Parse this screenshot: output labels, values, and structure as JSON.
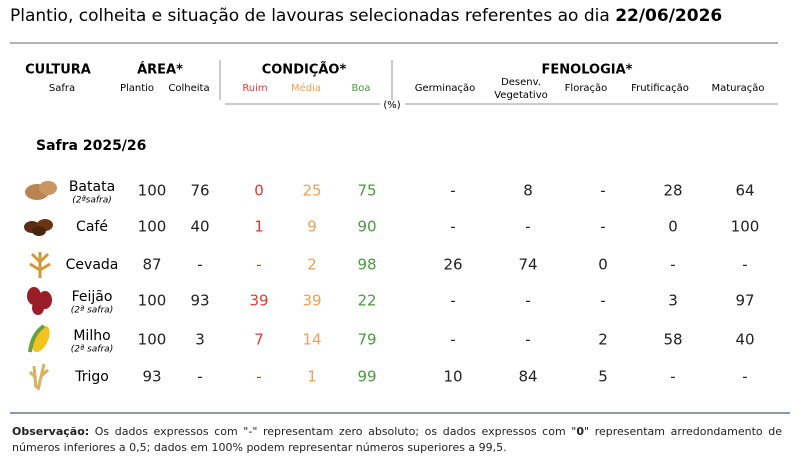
{
  "title": {
    "text": "Plantio, colheita e situação de lavouras selecionadas referentes ao dia ",
    "date": "22/06/2026"
  },
  "header": {
    "cultura": {
      "label": "CULTURA",
      "sub": "Safra"
    },
    "area": {
      "label": "ÁREA*",
      "subs": [
        "Plantio",
        "Colheita"
      ]
    },
    "condicao": {
      "label": "CONDIÇÃO*",
      "subs": [
        "Ruim",
        "Média",
        "Boa"
      ]
    },
    "unit": "(%)",
    "fenologia": {
      "label": "FENOLOGIA*",
      "subs": [
        "Germinação",
        [
          "Desenv.",
          "Vegetativo"
        ],
        "Floração",
        "Frutificação",
        "Maturação"
      ]
    }
  },
  "section": "Safra 2025/26",
  "rows": [
    {
      "crop": "Batata",
      "note": "(2ªsafra)",
      "values": [
        100,
        76,
        0,
        25,
        75,
        "-",
        8,
        "-",
        28,
        64
      ]
    },
    {
      "crop": "Café",
      "values": [
        100,
        40,
        1,
        9,
        90,
        "-",
        "-",
        "-",
        0,
        100
      ]
    },
    {
      "crop": "Cevada",
      "values": [
        87,
        "-",
        "-",
        2,
        98,
        26,
        74,
        0,
        "-",
        "-"
      ]
    },
    {
      "crop": "Feijão",
      "note": "(2ª safra)",
      "values": [
        100,
        93,
        39,
        39,
        22,
        "-",
        "-",
        "-",
        3,
        97
      ]
    },
    {
      "crop": "Milho",
      "note": "(2ª safra)",
      "values": [
        100,
        3,
        7,
        14,
        79,
        "-",
        "-",
        2,
        58,
        40
      ]
    },
    {
      "crop": "Trigo",
      "values": [
        93,
        "-",
        "-",
        1,
        99,
        10,
        84,
        5,
        "-",
        "-"
      ]
    }
  ],
  "footer": {
    "label": "Observação:",
    "text1": " Os dados expressos com \"-\" representam zero absoluto; os dados expressos com \"",
    "bold": "0",
    "text2": "\" representam arredondamento de números inferiores a 0,5; dados em 100% podem representar números superiores a 99,5."
  }
}
